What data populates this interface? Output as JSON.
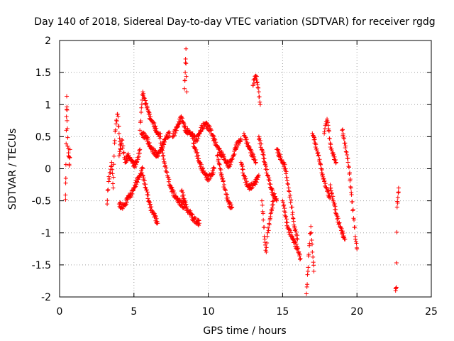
{
  "chart_data": {
    "type": "scatter",
    "title": "Day 140 of 2018, Sidereal Day-to-day VTEC variation (SDTVAR) for receiver rgdg",
    "xlabel": "GPS time / hours",
    "ylabel": "SDTVAR / TECUs",
    "xlim": [
      0,
      25
    ],
    "ylim": [
      -2,
      2
    ],
    "xticks": [
      0,
      5,
      10,
      15,
      20,
      25
    ],
    "xtick_labels": [
      "0",
      "5",
      "10",
      "15",
      "20",
      "25"
    ],
    "yticks": [
      -2,
      -1.5,
      -1,
      -0.5,
      0,
      0.5,
      1,
      1.5,
      2
    ],
    "ytick_labels": [
      "-2",
      "-1.5",
      "-1",
      "-0.5",
      "0",
      "0.5",
      "1",
      "1.5",
      "2"
    ],
    "grid": true,
    "marker": "+",
    "color": "#ff0000",
    "series": [
      {
        "name": "SDTVAR",
        "segments": [
          [
            [
              0.4,
              -0.48
            ],
            [
              0.42,
              -0.15
            ],
            [
              0.45,
              0.6
            ],
            [
              0.48,
              1.13
            ],
            [
              0.5,
              0.75
            ],
            [
              0.55,
              0.35
            ],
            [
              0.6,
              0.2
            ],
            [
              0.65,
              0.05
            ],
            [
              0.7,
              0.3
            ]
          ],
          [
            [
              3.2,
              -0.55
            ],
            [
              3.3,
              -0.2
            ],
            [
              3.5,
              0.1
            ],
            [
              3.6,
              -0.3
            ],
            [
              3.7,
              0.4
            ],
            [
              3.8,
              0.7
            ],
            [
              3.9,
              0.85
            ],
            [
              4.0,
              0.55
            ],
            [
              4.1,
              0.3
            ]
          ],
          [
            [
              4.0,
              0.2
            ],
            [
              4.2,
              0.45
            ],
            [
              4.4,
              0.1
            ],
            [
              4.6,
              0.2
            ],
            [
              4.8,
              0.15
            ],
            [
              5.0,
              0.05
            ],
            [
              5.2,
              0.1
            ],
            [
              5.4,
              0.3
            ]
          ],
          [
            [
              4.0,
              -0.55
            ],
            [
              4.2,
              -0.6
            ],
            [
              4.4,
              -0.55
            ],
            [
              4.6,
              -0.45
            ],
            [
              4.8,
              -0.4
            ],
            [
              5.0,
              -0.3
            ],
            [
              5.2,
              -0.2
            ],
            [
              5.4,
              -0.1
            ],
            [
              5.6,
              0.0
            ]
          ],
          [
            [
              5.4,
              0.6
            ],
            [
              5.5,
              0.95
            ],
            [
              5.6,
              1.2
            ],
            [
              5.7,
              1.1
            ],
            [
              5.8,
              1.0
            ],
            [
              5.9,
              0.95
            ],
            [
              6.0,
              0.85
            ],
            [
              6.2,
              0.75
            ],
            [
              6.4,
              0.65
            ],
            [
              6.6,
              0.55
            ],
            [
              6.8,
              0.5
            ]
          ],
          [
            [
              5.5,
              0.55
            ],
            [
              5.8,
              0.5
            ],
            [
              6.0,
              0.4
            ],
            [
              6.2,
              0.3
            ],
            [
              6.4,
              0.25
            ],
            [
              6.6,
              0.2
            ],
            [
              6.8,
              0.3
            ],
            [
              7.0,
              0.4
            ],
            [
              7.2,
              0.5
            ],
            [
              7.4,
              0.55
            ]
          ],
          [
            [
              5.6,
              -0.1
            ],
            [
              5.8,
              -0.3
            ],
            [
              6.0,
              -0.5
            ],
            [
              6.2,
              -0.65
            ],
            [
              6.4,
              -0.75
            ],
            [
              6.6,
              -0.85
            ]
          ],
          [
            [
              6.8,
              0.4
            ],
            [
              7.0,
              0.15
            ],
            [
              7.2,
              -0.05
            ],
            [
              7.4,
              -0.25
            ],
            [
              7.6,
              -0.35
            ],
            [
              7.8,
              -0.45
            ],
            [
              8.0,
              -0.5
            ],
            [
              8.2,
              -0.55
            ],
            [
              8.4,
              -0.6
            ]
          ],
          [
            [
              7.6,
              0.5
            ],
            [
              7.8,
              0.6
            ],
            [
              8.0,
              0.7
            ],
            [
              8.2,
              0.8
            ],
            [
              8.4,
              0.65
            ],
            [
              8.6,
              0.55
            ]
          ],
          [
            [
              8.2,
              -0.35
            ],
            [
              8.4,
              -0.5
            ],
            [
              8.6,
              -0.65
            ],
            [
              8.8,
              -0.7
            ],
            [
              9.0,
              -0.78
            ],
            [
              9.2,
              -0.82
            ],
            [
              9.4,
              -0.85
            ]
          ],
          [
            [
              8.4,
              1.25
            ],
            [
              8.45,
              1.5
            ],
            [
              8.5,
              1.87
            ],
            [
              8.55,
              1.2
            ]
          ],
          [
            [
              8.6,
              0.6
            ],
            [
              8.8,
              0.55
            ],
            [
              9.0,
              0.5
            ],
            [
              9.2,
              0.45
            ],
            [
              9.4,
              0.55
            ],
            [
              9.6,
              0.65
            ],
            [
              9.8,
              0.7
            ],
            [
              10.0,
              0.65
            ],
            [
              10.2,
              0.6
            ]
          ],
          [
            [
              9.0,
              0.4
            ],
            [
              9.2,
              0.25
            ],
            [
              9.4,
              0.1
            ],
            [
              9.6,
              0.0
            ],
            [
              9.8,
              -0.1
            ],
            [
              10.0,
              -0.15
            ],
            [
              10.2,
              -0.1
            ],
            [
              10.4,
              0.0
            ]
          ],
          [
            [
              10.2,
              0.55
            ],
            [
              10.4,
              0.45
            ],
            [
              10.6,
              0.35
            ],
            [
              10.8,
              0.25
            ],
            [
              11.0,
              0.2
            ],
            [
              11.2,
              0.1
            ],
            [
              11.4,
              0.05
            ],
            [
              11.6,
              0.15
            ],
            [
              11.8,
              0.3
            ],
            [
              12.0,
              0.4
            ],
            [
              12.2,
              0.45
            ]
          ],
          [
            [
              10.6,
              0.2
            ],
            [
              10.8,
              0.0
            ],
            [
              11.0,
              -0.2
            ],
            [
              11.2,
              -0.4
            ],
            [
              11.4,
              -0.55
            ],
            [
              11.6,
              -0.6
            ]
          ],
          [
            [
              12.2,
              0.1
            ],
            [
              12.4,
              -0.1
            ],
            [
              12.6,
              -0.25
            ],
            [
              12.8,
              -0.3
            ],
            [
              13.0,
              -0.25
            ],
            [
              13.2,
              -0.2
            ],
            [
              13.4,
              -0.1
            ]
          ],
          [
            [
              12.4,
              0.55
            ],
            [
              12.6,
              0.4
            ],
            [
              12.8,
              0.3
            ],
            [
              13.0,
              0.2
            ],
            [
              13.2,
              0.1
            ]
          ],
          [
            [
              13.0,
              1.3
            ],
            [
              13.1,
              1.4
            ],
            [
              13.2,
              1.45
            ],
            [
              13.3,
              1.35
            ],
            [
              13.4,
              1.2
            ],
            [
              13.5,
              1.0
            ]
          ],
          [
            [
              13.4,
              0.5
            ],
            [
              13.6,
              0.3
            ],
            [
              13.8,
              0.1
            ],
            [
              14.0,
              -0.1
            ],
            [
              14.2,
              -0.3
            ],
            [
              14.4,
              -0.4
            ],
            [
              14.6,
              -0.5
            ]
          ],
          [
            [
              13.6,
              -0.5
            ],
            [
              13.7,
              -0.8
            ],
            [
              13.8,
              -1.1
            ],
            [
              13.9,
              -1.3
            ],
            [
              14.0,
              -1.0
            ],
            [
              14.2,
              -0.7
            ],
            [
              14.4,
              -0.5
            ]
          ],
          [
            [
              14.6,
              0.3
            ],
            [
              14.8,
              0.2
            ],
            [
              15.0,
              0.1
            ],
            [
              15.2,
              0.0
            ],
            [
              15.4,
              -0.3
            ],
            [
              15.6,
              -0.6
            ],
            [
              15.8,
              -0.9
            ],
            [
              16.0,
              -1.1
            ]
          ],
          [
            [
              15.0,
              -0.5
            ],
            [
              15.2,
              -0.75
            ],
            [
              15.4,
              -0.95
            ],
            [
              15.6,
              -1.05
            ],
            [
              15.8,
              -1.15
            ],
            [
              16.0,
              -1.25
            ],
            [
              16.2,
              -1.4
            ]
          ],
          [
            [
              16.6,
              -1.95
            ],
            [
              16.7,
              -1.6
            ],
            [
              16.8,
              -1.2
            ],
            [
              16.9,
              -0.9
            ],
            [
              17.0,
              -1.3
            ],
            [
              17.1,
              -1.6
            ]
          ],
          [
            [
              17.0,
              0.55
            ],
            [
              17.2,
              0.4
            ],
            [
              17.4,
              0.2
            ],
            [
              17.6,
              0.0
            ],
            [
              17.8,
              -0.2
            ],
            [
              18.0,
              -0.35
            ],
            [
              18.2,
              -0.45
            ]
          ],
          [
            [
              17.8,
              0.55
            ],
            [
              17.9,
              0.7
            ],
            [
              18.0,
              0.75
            ],
            [
              18.1,
              0.6
            ],
            [
              18.2,
              0.4
            ],
            [
              18.4,
              0.2
            ],
            [
              18.6,
              0.1
            ]
          ],
          [
            [
              18.2,
              -0.25
            ],
            [
              18.4,
              -0.5
            ],
            [
              18.6,
              -0.7
            ],
            [
              18.8,
              -0.85
            ],
            [
              19.0,
              -1.0
            ],
            [
              19.2,
              -1.1
            ]
          ],
          [
            [
              19.0,
              0.6
            ],
            [
              19.2,
              0.4
            ],
            [
              19.4,
              0.1
            ],
            [
              19.6,
              -0.3
            ],
            [
              19.8,
              -0.8
            ],
            [
              19.9,
              -1.1
            ],
            [
              20.0,
              -1.25
            ]
          ],
          [
            [
              22.6,
              -1.9
            ],
            [
              22.65,
              -1.85
            ],
            [
              22.7,
              -0.6
            ],
            [
              22.75,
              -0.45
            ],
            [
              22.8,
              -0.3
            ]
          ]
        ]
      }
    ]
  }
}
